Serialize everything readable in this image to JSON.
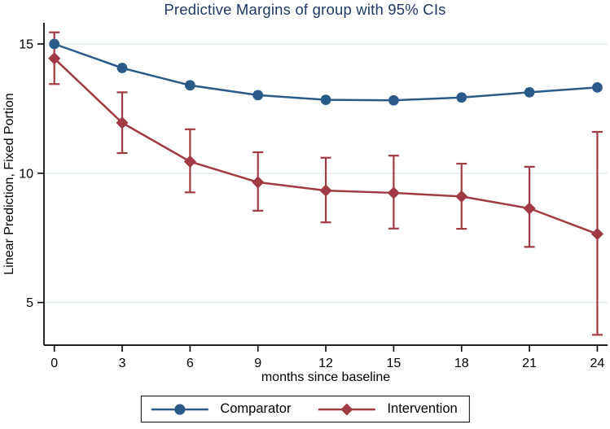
{
  "chart_data": {
    "type": "line",
    "title": "Predictive Margins of group with 95% CIs",
    "xlabel": "months since baseline",
    "ylabel": "Linear Prediction, Fixed Portion",
    "x": [
      0,
      3,
      6,
      9,
      12,
      15,
      18,
      21,
      24
    ],
    "xticks": [
      0,
      3,
      6,
      9,
      12,
      15,
      18,
      21,
      24
    ],
    "yticks": [
      5,
      10,
      15
    ],
    "xlim": [
      -0.5,
      24.6
    ],
    "ylim": [
      3.3,
      15.9
    ],
    "grid": "horizontal gridlines at y ticks",
    "legend_position": "bottom-center boxed",
    "series": [
      {
        "name": "Comparator",
        "marker": "circle",
        "color": "#2a5a88",
        "values": [
          15.0,
          14.07,
          13.4,
          13.02,
          12.84,
          12.82,
          12.93,
          13.13,
          13.32
        ],
        "ci_low": null,
        "ci_high": null
      },
      {
        "name": "Intervention",
        "marker": "diamond",
        "color": "#a03b44",
        "values": [
          14.44,
          11.95,
          10.45,
          9.65,
          9.33,
          9.24,
          9.1,
          8.64,
          7.65
        ],
        "ci_low": [
          13.45,
          10.78,
          9.26,
          8.55,
          8.1,
          7.86,
          7.85,
          7.15,
          3.75
        ],
        "ci_high": [
          15.45,
          13.13,
          11.7,
          10.81,
          10.6,
          10.68,
          10.37,
          10.25,
          11.6
        ]
      }
    ]
  },
  "colors": {
    "title": "#203864",
    "axis": "#000000",
    "tick_label": "#000000",
    "grid": "#e5eef1",
    "legend_border": "#000000",
    "background": "#ffffff"
  }
}
